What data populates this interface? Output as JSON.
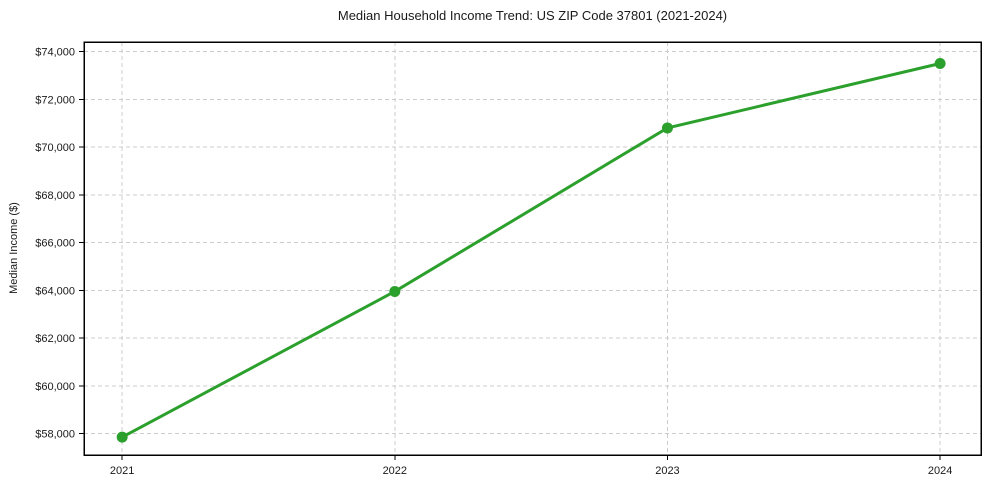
{
  "figure": {
    "background": "#ffffff"
  },
  "chart_data": {
    "type": "line",
    "title": "Median Household Income Trend: US ZIP Code 37801 (2021-2024)",
    "xlabel": "",
    "ylabel": "Median Income ($)",
    "x": [
      2021,
      2022,
      2023,
      2024
    ],
    "x_tick_labels": [
      "2021",
      "2022",
      "2023",
      "2024"
    ],
    "series": [
      {
        "name": "Median Household Income",
        "values": [
          57850,
          63950,
          70800,
          73500
        ],
        "color": "#2ca02c",
        "marker": "circle",
        "line_width": 3,
        "marker_radius": 5.5
      }
    ],
    "y_ticks": [
      58000,
      60000,
      62000,
      64000,
      66000,
      68000,
      70000,
      72000,
      74000
    ],
    "y_tick_labels": [
      "$58,000",
      "$60,000",
      "$62,000",
      "$64,000",
      "$66,000",
      "$68,000",
      "$70,000",
      "$72,000",
      "$74,000"
    ],
    "xlim": [
      2020.86,
      2024.15
    ],
    "ylim": [
      57100,
      74400
    ],
    "grid": true,
    "grid_style": "dashed",
    "grid_color": "#cccccc",
    "axis_color": "#000000",
    "text_color": "#1a1a1a",
    "legend": "none"
  }
}
